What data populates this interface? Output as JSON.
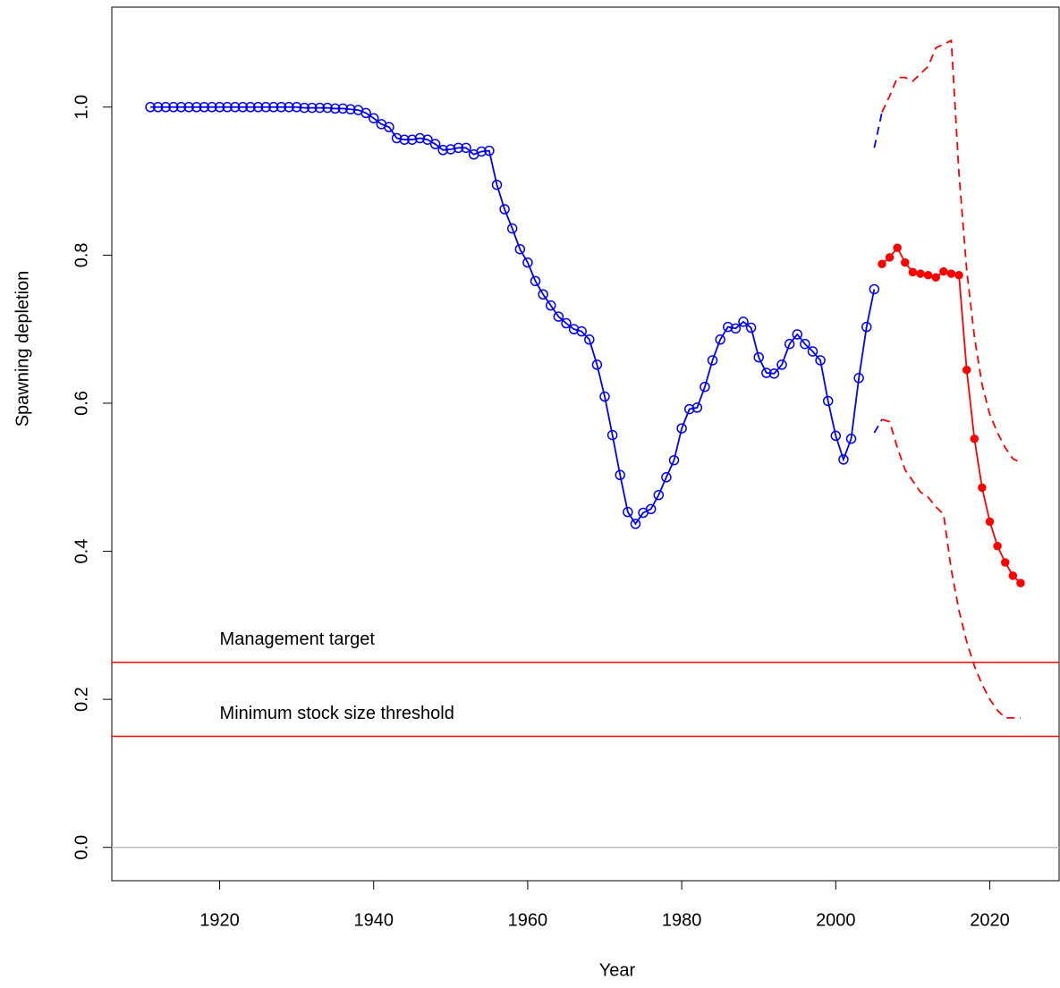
{
  "chart_data": {
    "type": "line",
    "xlabel": "Year",
    "ylabel": "Spawning depletion",
    "xlim": [
      1906,
      2029
    ],
    "ylim": [
      -0.045,
      1.135
    ],
    "xticks": [
      1920,
      1940,
      1960,
      1980,
      2000,
      2020
    ],
    "yticks": [
      {
        "value": 0,
        "label": "0.0"
      },
      0.2,
      0.4,
      0.6,
      0.8,
      {
        "value": 1,
        "label": "1.0"
      }
    ],
    "series": [
      {
        "color": "#0000ff",
        "marker": "open-circle",
        "x": [
          1911,
          1912,
          1913,
          1914,
          1915,
          1916,
          1917,
          1918,
          1919,
          1920,
          1921,
          1922,
          1923,
          1924,
          1925,
          1926,
          1927,
          1928,
          1929,
          1930,
          1931,
          1932,
          1933,
          1934,
          1935,
          1936,
          1937,
          1938,
          1939,
          1940,
          1941,
          1942,
          1943,
          1944,
          1945,
          1946,
          1947,
          1948,
          1949,
          1950,
          1951,
          1952,
          1953,
          1954,
          1955,
          1956,
          1957,
          1958,
          1959,
          1960,
          1961,
          1962,
          1963,
          1964,
          1965,
          1966,
          1967,
          1968,
          1969,
          1970,
          1971,
          1972,
          1973,
          1974,
          1975,
          1976,
          1977,
          1978,
          1979,
          1980,
          1981,
          1982,
          1983,
          1984,
          1985,
          1986,
          1987,
          1988,
          1989,
          1990,
          1991,
          1992,
          1993,
          1994,
          1995,
          1996,
          1997,
          1998,
          1999,
          2000,
          2001,
          2002,
          2003,
          2004,
          2005
        ],
        "values": [
          1.0,
          1.0,
          1.0,
          1.0,
          1.0,
          1.0,
          1.0,
          1.0,
          1.0,
          1.0,
          1.0,
          1.0,
          1.0,
          1.0,
          1.0,
          1.0,
          1.0,
          1.0,
          1.0,
          1.0,
          0.999,
          0.999,
          0.999,
          0.999,
          0.998,
          0.998,
          0.997,
          0.996,
          0.992,
          0.985,
          0.977,
          0.973,
          0.958,
          0.956,
          0.956,
          0.958,
          0.956,
          0.95,
          0.942,
          0.943,
          0.945,
          0.945,
          0.936,
          0.94,
          0.941,
          0.895,
          0.862,
          0.836,
          0.808,
          0.79,
          0.765,
          0.747,
          0.732,
          0.717,
          0.708,
          0.7,
          0.697,
          0.686,
          0.652,
          0.609,
          0.557,
          0.503,
          0.453,
          0.437,
          0.452,
          0.457,
          0.476,
          0.5,
          0.523,
          0.566,
          0.592,
          0.594,
          0.622,
          0.658,
          0.686,
          0.703,
          0.701,
          0.71,
          0.702,
          0.662,
          0.641,
          0.64,
          0.652,
          0.68,
          0.693,
          0.68,
          0.67,
          0.658,
          0.603,
          0.556,
          0.524,
          0.552,
          0.634,
          0.703,
          0.754
        ]
      },
      {
        "color": "#ff0000",
        "marker": "filled-circle",
        "x": [
          2006,
          2007,
          2008,
          2009,
          2010,
          2011,
          2012,
          2013,
          2014,
          2015,
          2016,
          2017,
          2018,
          2019,
          2020,
          2021,
          2022,
          2023,
          2024
        ],
        "values": [
          0.788,
          0.797,
          0.81,
          0.79,
          0.777,
          0.775,
          0.773,
          0.77,
          0.778,
          0.775,
          0.773,
          0.645,
          0.552,
          0.486,
          0.44,
          0.407,
          0.385,
          0.367,
          0.357
        ]
      },
      {
        "color": "#0000ff",
        "dashed": true,
        "x": [
          2005,
          2006
        ],
        "values": [
          0.945,
          0.993
        ]
      },
      {
        "color": "#ff0000",
        "dashed": true,
        "x": [
          2006,
          2007,
          2008,
          2009,
          2010,
          2011,
          2012,
          2013,
          2014,
          2015,
          2016,
          2017,
          2018,
          2019,
          2020,
          2021,
          2022,
          2023,
          2024
        ],
        "values": [
          0.993,
          1.015,
          1.04,
          1.04,
          1.035,
          1.045,
          1.055,
          1.08,
          1.085,
          1.09,
          0.91,
          0.78,
          0.69,
          0.625,
          0.585,
          0.56,
          0.54,
          0.525,
          0.52
        ]
      },
      {
        "color": "#0000ff",
        "dashed": true,
        "x": [
          2005,
          2006
        ],
        "values": [
          0.56,
          0.578
        ]
      },
      {
        "color": "#ff0000",
        "dashed": true,
        "x": [
          2006,
          2007,
          2008,
          2009,
          2010,
          2011,
          2012,
          2013,
          2014,
          2015,
          2016,
          2017,
          2018,
          2019,
          2020,
          2021,
          2022,
          2023,
          2024
        ],
        "values": [
          0.578,
          0.575,
          0.54,
          0.51,
          0.495,
          0.48,
          0.473,
          0.46,
          0.45,
          0.375,
          0.32,
          0.278,
          0.245,
          0.22,
          0.2,
          0.185,
          0.175,
          0.175,
          0.175
        ]
      }
    ],
    "hlines": [
      {
        "value": 0.25,
        "label": "Management target",
        "color": "#ff0000"
      },
      {
        "value": 0.15,
        "label": "Minimum stock size threshold",
        "color": "#ff0000"
      },
      {
        "value": 0,
        "color": "#bebebe"
      }
    ]
  }
}
